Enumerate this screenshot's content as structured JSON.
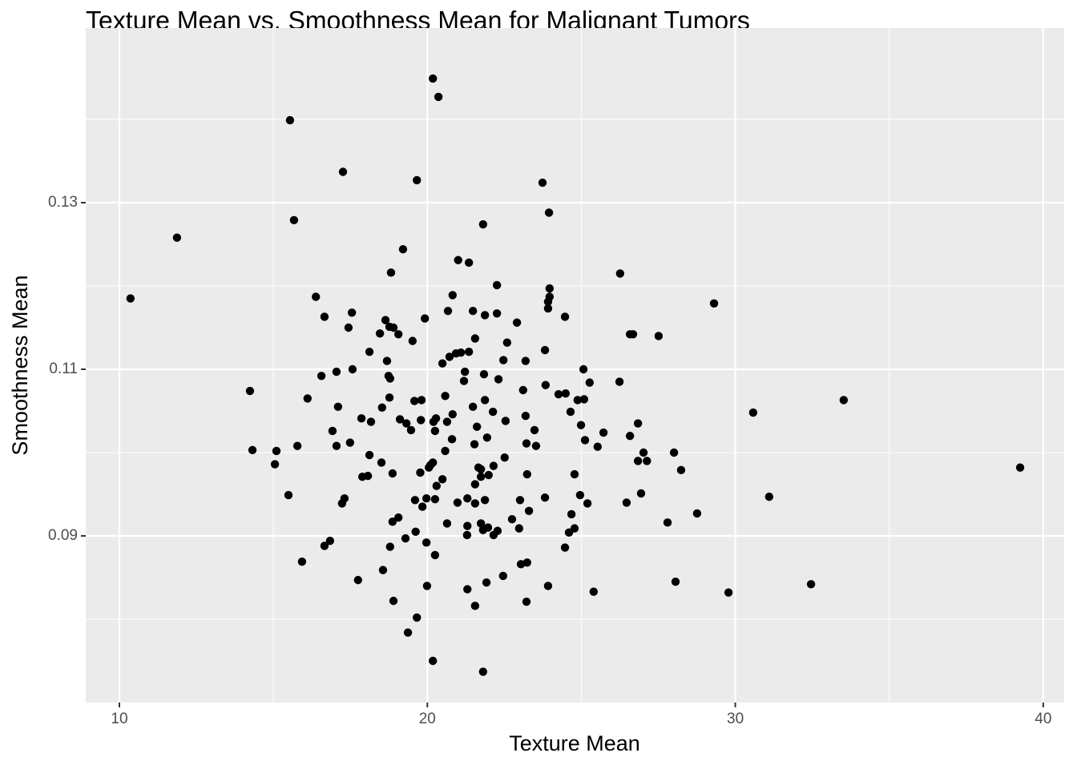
{
  "chart_data": {
    "type": "scatter",
    "title": "Texture Mean vs. Smoothness Mean for Malignant Tumors",
    "x_label": "Texture Mean",
    "y_label": "Smoothness Mean",
    "color": "#000000",
    "panel_color": "#EBEBEB",
    "grid": true,
    "xlim": [
      8.907,
      40.68
    ],
    "ylim": [
      0.07,
      0.15096
    ],
    "xticks": [
      10,
      20,
      30,
      40
    ],
    "yticks": [
      0.09,
      0.11,
      0.13
    ],
    "xminor": [
      15,
      25,
      35
    ],
    "yminor": [
      0.08,
      0.1,
      0.12,
      0.14
    ],
    "x": [
      10.36,
      11.87,
      15.54,
      15.67,
      17.26,
      20.18,
      20.36,
      19.66,
      23.74,
      23.95,
      21.81,
      19.21,
      21.0,
      21.35,
      18.82,
      26.26,
      22.26,
      23.97,
      20.82,
      16.38,
      23.97,
      23.92,
      29.31,
      21.48,
      20.67,
      17.55,
      22.26,
      21.87,
      23.92,
      24.47,
      16.66,
      18.64,
      19.92,
      22.91,
      18.77,
      18.9,
      17.44,
      18.46,
      19.06,
      26.58,
      26.68,
      27.51,
      21.55,
      19.52,
      22.59,
      23.82,
      21.35,
      21.09,
      20.93,
      18.12,
      20.72,
      18.69,
      22.47,
      23.19,
      20.49,
      17.57,
      25.07,
      17.05,
      21.22,
      21.84,
      18.74,
      16.56,
      18.79,
      22.31,
      21.19,
      14.24,
      25.27,
      26.24,
      23.84,
      23.11,
      24.49,
      24.26,
      20.58,
      18.77,
      16.11,
      21.87,
      24.88,
      25.09,
      33.52,
      19.58,
      19.81,
      21.48,
      17.1,
      18.53,
      22.13,
      24.65,
      30.58,
      20.82,
      23.19,
      17.86,
      20.28,
      19.11,
      19.79,
      22.54,
      18.17,
      20.2,
      20.64,
      19.32,
      26.84,
      24.99,
      21.61,
      23.48,
      19.47,
      16.92,
      20.25,
      25.72,
      26.58,
      21.94,
      25.12,
      20.8,
      17.49,
      21.53,
      17.05,
      23.53,
      23.22,
      25.53,
      15.78,
      14.32,
      15.1,
      20.58,
      27.02,
      28.01,
      22.51,
      18.12,
      27.13,
      26.84,
      18.51,
      15.05,
      20.18,
      20.1,
      21.66,
      39.25,
      22.15,
      28.24,
      21.74,
      20.05,
      19.77,
      18.87,
      24.78,
      23.24,
      21.99,
      21.74,
      18.07,
      17.89,
      20.49,
      20.3,
      21.55,
      26.94,
      24.96,
      15.49,
      31.1,
      23.82,
      20.25,
      19.97,
      23.01,
      21.87,
      17.31,
      21.3,
      20.98,
      25.2,
      21.55,
      26.47,
      17.23,
      19.6,
      23.3,
      19.84,
      24.68,
      28.76,
      19.06,
      22.75,
      18.87,
      20.64,
      21.74,
      27.8,
      21.3,
      21.97,
      22.98,
      24.78,
      21.81,
      22.28,
      24.6,
      19.62,
      21.29,
      22.15,
      19.29,
      19.97,
      16.84,
      16.66,
      18.79,
      24.47,
      20.25,
      15.93,
      23.24,
      23.04,
      18.56,
      17.75,
      22.46,
      21.92,
      28.06,
      32.46,
      19.99,
      23.92,
      21.3,
      25.4,
      29.78,
      23.22,
      18.9,
      21.55,
      19.66,
      19.37,
      20.18,
      21.81
    ],
    "values": [
      0.1185,
      0.1258,
      0.1399,
      0.1279,
      0.1337,
      0.1449,
      0.1427,
      0.1327,
      0.1324,
      0.1288,
      0.1274,
      0.1244,
      0.1231,
      0.1228,
      0.1216,
      0.1215,
      0.1201,
      0.1197,
      0.1189,
      0.1187,
      0.1187,
      0.1181,
      0.1179,
      0.117,
      0.117,
      0.1168,
      0.1167,
      0.1165,
      0.1173,
      0.1163,
      0.1163,
      0.1159,
      0.1161,
      0.1156,
      0.1151,
      0.115,
      0.115,
      0.1143,
      0.1142,
      0.1142,
      0.1142,
      0.114,
      0.1137,
      0.1134,
      0.1132,
      0.1123,
      0.1121,
      0.112,
      0.1119,
      0.1121,
      0.1115,
      0.111,
      0.1111,
      0.111,
      0.1107,
      0.11,
      0.11,
      0.1097,
      0.1097,
      0.1094,
      0.1092,
      0.1092,
      0.1089,
      0.1088,
      0.1086,
      0.1074,
      0.1084,
      0.1085,
      0.1081,
      0.1075,
      0.1071,
      0.107,
      0.1068,
      0.1066,
      0.1065,
      0.1063,
      0.1063,
      0.1064,
      0.1063,
      0.1062,
      0.1063,
      0.1055,
      0.1055,
      0.1054,
      0.1049,
      0.1049,
      0.1048,
      0.1046,
      0.1044,
      0.1041,
      0.1041,
      0.104,
      0.1039,
      0.1038,
      0.1037,
      0.1037,
      0.1037,
      0.1035,
      0.1035,
      0.1033,
      0.1031,
      0.1027,
      0.1027,
      0.1026,
      0.1026,
      0.1024,
      0.102,
      0.1018,
      0.1015,
      0.1016,
      0.1012,
      0.101,
      0.1008,
      0.1008,
      0.1011,
      0.1007,
      0.1008,
      0.1003,
      0.1002,
      0.1002,
      0.1,
      0.1,
      0.0994,
      0.0997,
      0.099,
      0.099,
      0.0988,
      0.0986,
      0.0988,
      0.0985,
      0.0982,
      0.0982,
      0.0984,
      0.0979,
      0.098,
      0.0982,
      0.0976,
      0.0975,
      0.0974,
      0.0974,
      0.0973,
      0.0971,
      0.0972,
      0.0971,
      0.0968,
      0.096,
      0.0962,
      0.0951,
      0.0949,
      0.0949,
      0.0947,
      0.0946,
      0.0944,
      0.0945,
      0.0943,
      0.0943,
      0.0945,
      0.0945,
      0.094,
      0.0939,
      0.0939,
      0.094,
      0.0939,
      0.0943,
      0.093,
      0.0935,
      0.0926,
      0.0927,
      0.0922,
      0.092,
      0.0917,
      0.0915,
      0.0915,
      0.0916,
      0.0912,
      0.091,
      0.0909,
      0.0909,
      0.0907,
      0.0906,
      0.0904,
      0.0905,
      0.0901,
      0.0901,
      0.0897,
      0.0892,
      0.0894,
      0.0888,
      0.0887,
      0.0886,
      0.0877,
      0.0869,
      0.0868,
      0.0866,
      0.0859,
      0.0847,
      0.0852,
      0.0844,
      0.0845,
      0.0842,
      0.084,
      0.084,
      0.0836,
      0.0833,
      0.0832,
      0.0821,
      0.0822,
      0.0816,
      0.0802,
      0.0784,
      0.075,
      0.0737
    ]
  }
}
